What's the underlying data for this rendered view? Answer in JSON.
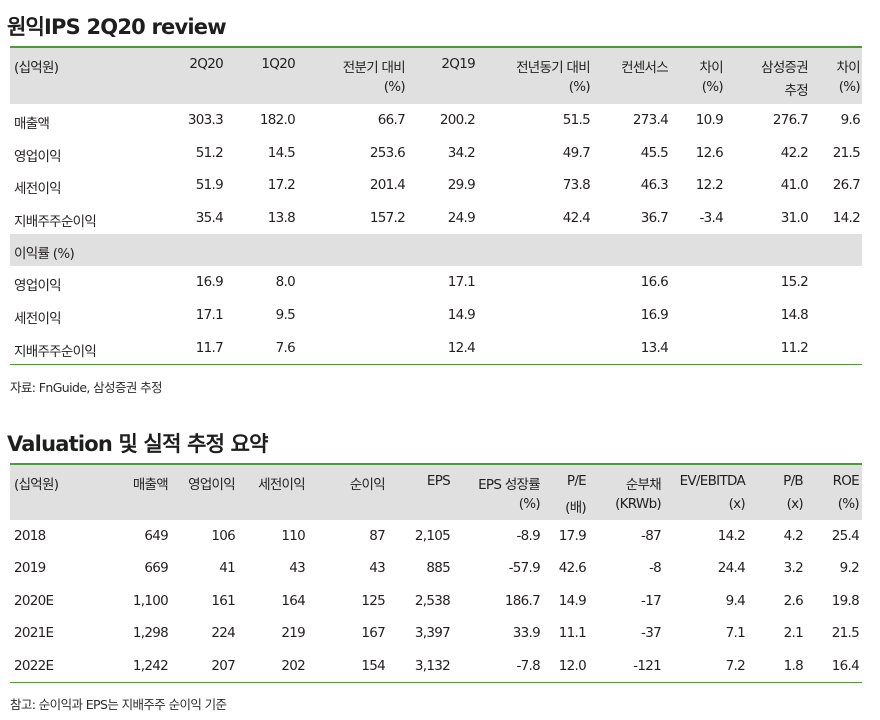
{
  "section1": {
    "title": "원익IPS 2Q20 review",
    "headers": [
      {
        "line1": "(십억원)",
        "line2": ""
      },
      {
        "line1": "2Q20",
        "line2": ""
      },
      {
        "line1": "1Q20",
        "line2": ""
      },
      {
        "line1": "전분기 대비",
        "line2": "(%)"
      },
      {
        "line1": "2Q19",
        "line2": ""
      },
      {
        "line1": "전년동기 대비",
        "line2": "(%)"
      },
      {
        "line1": "컨센서스",
        "line2": ""
      },
      {
        "line1": "차이",
        "line2": "(%)"
      },
      {
        "line1": "삼성증권",
        "line2": "추정"
      },
      {
        "line1": "차이",
        "line2": "(%)"
      }
    ],
    "rows": [
      [
        "매출액",
        "303.3",
        "182.0",
        "66.7",
        "200.2",
        "51.5",
        "273.4",
        "10.9",
        "276.7",
        "9.6"
      ],
      [
        "영업이익",
        "51.2",
        "14.5",
        "253.6",
        "34.2",
        "49.7",
        "45.5",
        "12.6",
        "42.2",
        "21.5"
      ],
      [
        "세전이익",
        "51.9",
        "17.2",
        "201.4",
        "29.9",
        "73.8",
        "46.3",
        "12.2",
        "41.0",
        "26.7"
      ],
      [
        "지배주주순이익",
        "35.4",
        "13.8",
        "157.2",
        "24.9",
        "42.4",
        "36.7",
        "-3.4",
        "31.0",
        "14.2"
      ]
    ],
    "subheader": "이익률 (%)",
    "margin_rows": [
      [
        "영업이익",
        "16.9",
        "8.0",
        "",
        "17.1",
        "",
        "16.6",
        "",
        "15.2",
        ""
      ],
      [
        "세전이익",
        "17.1",
        "9.5",
        "",
        "14.9",
        "",
        "16.9",
        "",
        "14.8",
        ""
      ],
      [
        "지배주주순이익",
        "11.7",
        "7.6",
        "",
        "12.4",
        "",
        "13.4",
        "",
        "11.2",
        ""
      ]
    ],
    "note": "자료: FnGuide, 삼성증권 추정"
  },
  "section2": {
    "title": "Valuation 및 실적 추정 요약",
    "headers": [
      {
        "line1": "(십억원)",
        "line2": ""
      },
      {
        "line1": "매출액",
        "line2": ""
      },
      {
        "line1": "영업이익",
        "line2": ""
      },
      {
        "line1": "세전이익",
        "line2": ""
      },
      {
        "line1": "순이익",
        "line2": ""
      },
      {
        "line1": "EPS",
        "line2": ""
      },
      {
        "line1": "EPS 성장률",
        "line2": "(%)"
      },
      {
        "line1": "P/E",
        "line2": "(배)"
      },
      {
        "line1": "순부채",
        "line2": "(KRWb)"
      },
      {
        "line1": "EV/EBITDA",
        "line2": "(x)"
      },
      {
        "line1": "P/B",
        "line2": "(x)"
      },
      {
        "line1": "ROE",
        "line2": "(%)"
      }
    ],
    "rows": [
      [
        "2018",
        "649",
        "106",
        "110",
        "87",
        "2,105",
        "-8.9",
        "17.9",
        "-87",
        "14.2",
        "4.2",
        "25.4"
      ],
      [
        "2019",
        "669",
        "41",
        "43",
        "43",
        "885",
        "-57.9",
        "42.6",
        "-8",
        "24.4",
        "3.2",
        "9.2"
      ],
      [
        "2020E",
        "1,100",
        "161",
        "164",
        "125",
        "2,538",
        "186.7",
        "14.9",
        "-17",
        "9.4",
        "2.6",
        "19.8"
      ],
      [
        "2021E",
        "1,298",
        "224",
        "219",
        "167",
        "3,397",
        "33.9",
        "11.1",
        "-37",
        "7.1",
        "2.1",
        "21.5"
      ],
      [
        "2022E",
        "1,242",
        "207",
        "202",
        "154",
        "3,132",
        "-7.8",
        "12.0",
        "-121",
        "7.2",
        "1.8",
        "16.4"
      ]
    ],
    "note": "참고: 순이익과 EPS는 지배주주 순이익 기준"
  }
}
